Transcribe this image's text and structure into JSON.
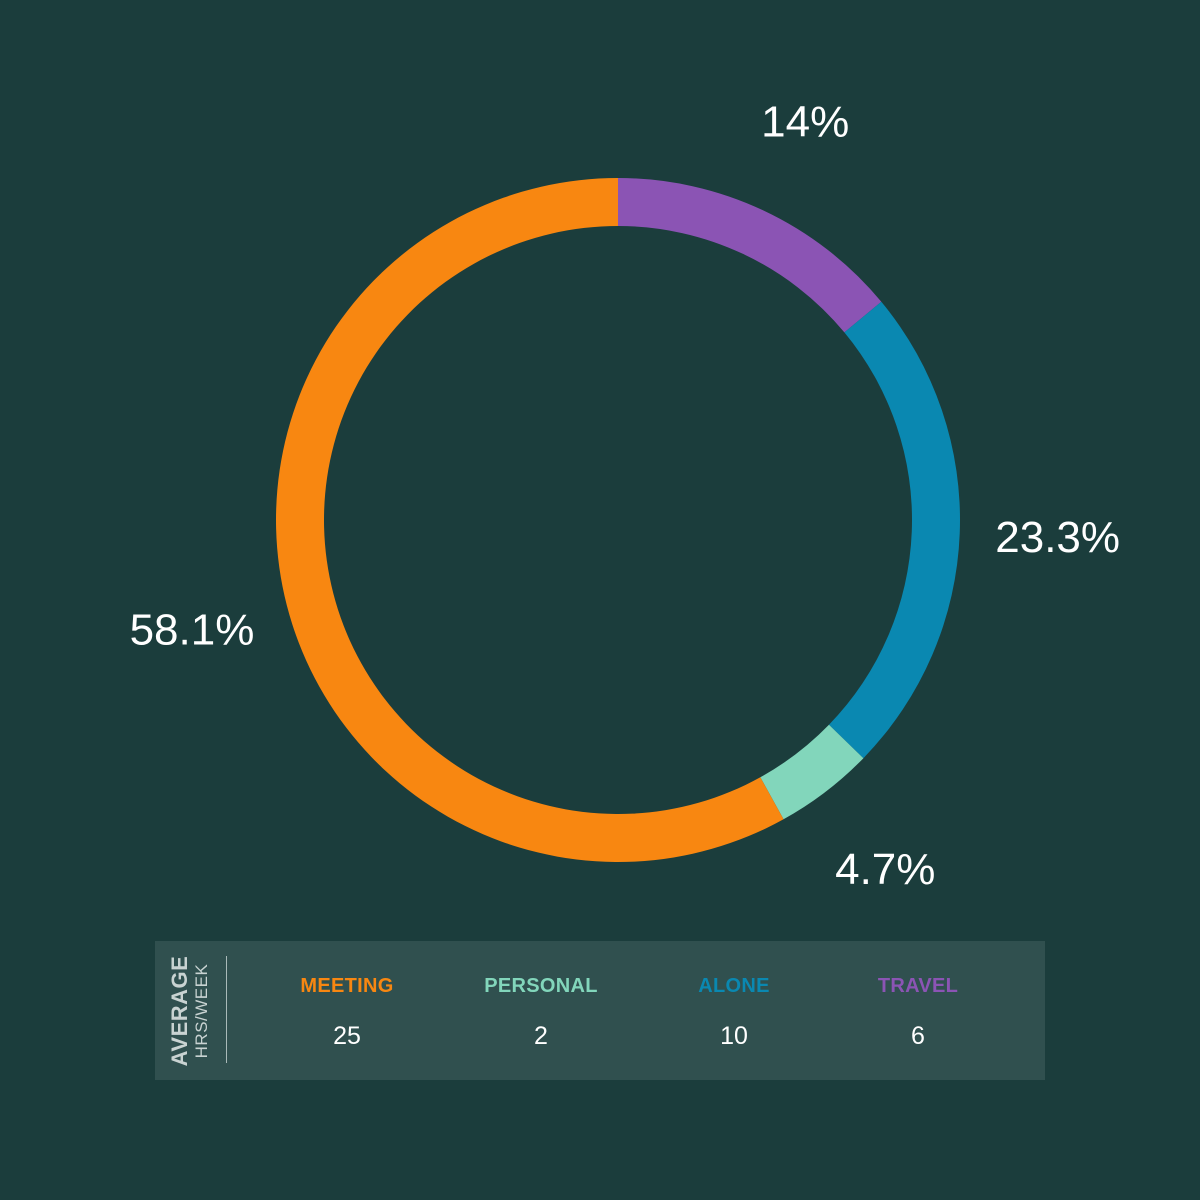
{
  "colors": {
    "background": "#1b3d3c",
    "meeting": "#f88711",
    "personal": "#82d6bb",
    "alone": "#0a88b1",
    "travel": "#8b54b4"
  },
  "chart_data": {
    "type": "pie",
    "style": "donut",
    "title": "",
    "slices": [
      {
        "name": "TRAVEL",
        "percent": 14,
        "label": "14%",
        "color": "#8b54b4"
      },
      {
        "name": "ALONE",
        "percent": 23.3,
        "label": "23.3%",
        "color": "#0a88b1"
      },
      {
        "name": "PERSONAL",
        "percent": 4.7,
        "label": "4.7%",
        "color": "#82d6bb"
      },
      {
        "name": "MEETING",
        "percent": 58.1,
        "label": "58.1%",
        "color": "#f88711"
      }
    ]
  },
  "legend": {
    "title": "AVERAGE",
    "subtitle": "HRS/WEEK",
    "items": [
      {
        "name": "MEETING",
        "value": "25",
        "color": "#f88711"
      },
      {
        "name": "PERSONAL",
        "value": "2",
        "color": "#82d6bb"
      },
      {
        "name": "ALONE",
        "value": "10",
        "color": "#0a88b1"
      },
      {
        "name": "TRAVEL",
        "value": "6",
        "color": "#8b54b4"
      }
    ]
  }
}
